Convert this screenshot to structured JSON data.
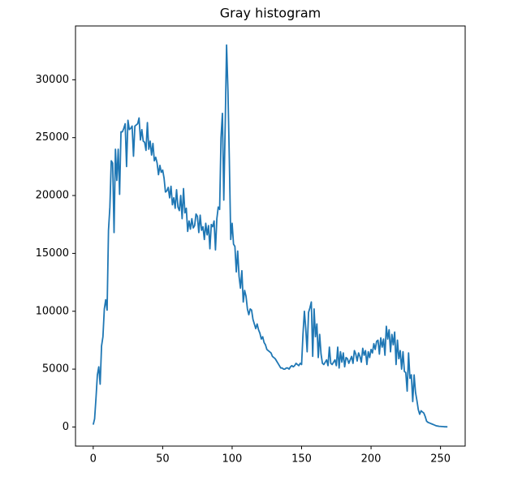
{
  "chart_data": {
    "type": "line",
    "title": "Gray histogram",
    "x": [
      0,
      1,
      2,
      3,
      4,
      5,
      6,
      7,
      8,
      9,
      10,
      11,
      12,
      13,
      14,
      15,
      16,
      17,
      18,
      19,
      20,
      21,
      22,
      23,
      24,
      25,
      26,
      27,
      28,
      29,
      30,
      31,
      32,
      33,
      34,
      35,
      36,
      37,
      38,
      39,
      40,
      41,
      42,
      43,
      44,
      45,
      46,
      47,
      48,
      49,
      50,
      51,
      52,
      53,
      54,
      55,
      56,
      57,
      58,
      59,
      60,
      61,
      62,
      63,
      64,
      65,
      66,
      67,
      68,
      69,
      70,
      71,
      72,
      73,
      74,
      75,
      76,
      77,
      78,
      79,
      80,
      81,
      82,
      83,
      84,
      85,
      86,
      87,
      88,
      89,
      90,
      91,
      92,
      93,
      94,
      95,
      96,
      97,
      98,
      99,
      100,
      101,
      102,
      103,
      104,
      105,
      106,
      107,
      108,
      109,
      110,
      111,
      112,
      113,
      114,
      115,
      116,
      117,
      118,
      119,
      120,
      121,
      122,
      123,
      124,
      125,
      126,
      127,
      128,
      129,
      130,
      131,
      132,
      133,
      134,
      135,
      136,
      137,
      138,
      139,
      140,
      141,
      142,
      143,
      144,
      145,
      146,
      147,
      148,
      149,
      150,
      151,
      152,
      153,
      154,
      155,
      156,
      157,
      158,
      159,
      160,
      161,
      162,
      163,
      164,
      165,
      166,
      167,
      168,
      169,
      170,
      171,
      172,
      173,
      174,
      175,
      176,
      177,
      178,
      179,
      180,
      181,
      182,
      183,
      184,
      185,
      186,
      187,
      188,
      189,
      190,
      191,
      192,
      193,
      194,
      195,
      196,
      197,
      198,
      199,
      200,
      201,
      202,
      203,
      204,
      205,
      206,
      207,
      208,
      209,
      210,
      211,
      212,
      213,
      214,
      215,
      216,
      217,
      218,
      219,
      220,
      221,
      222,
      223,
      224,
      225,
      226,
      227,
      228,
      229,
      230,
      231,
      232,
      233,
      234,
      235,
      236,
      237,
      238,
      239,
      240,
      241,
      242,
      243,
      244,
      245,
      246,
      247,
      248,
      249,
      250,
      251,
      252,
      253,
      254,
      255
    ],
    "series": [
      {
        "color": "#1f77b4",
        "values": [
          200,
          700,
          2500,
          4500,
          5200,
          3700,
          7000,
          7800,
          10200,
          11000,
          10100,
          17000,
          19000,
          23000,
          22800,
          16800,
          24000,
          21300,
          24000,
          20100,
          25500,
          25500,
          25800,
          26200,
          22500,
          26500,
          25700,
          25800,
          26000,
          23400,
          26000,
          26100,
          26200,
          26700,
          24800,
          25700,
          24700,
          24600,
          23900,
          26300,
          24000,
          24700,
          23500,
          24500,
          23000,
          23300,
          22800,
          21800,
          22600,
          22000,
          22200,
          21500,
          20300,
          20400,
          20700,
          19800,
          20800,
          19200,
          19800,
          18900,
          20500,
          19000,
          18700,
          20000,
          18000,
          20600,
          18500,
          18900,
          16900,
          17800,
          17100,
          18000,
          17200,
          17400,
          18400,
          18200,
          16800,
          18300,
          17000,
          17300,
          16200,
          17600,
          16600,
          17400,
          15400,
          17500,
          17300,
          17800,
          15300,
          18000,
          19000,
          18800,
          25000,
          27100,
          19600,
          26000,
          33000,
          29000,
          23000,
          16200,
          17600,
          15800,
          15600,
          13400,
          15200,
          13000,
          12000,
          13500,
          10800,
          11800,
          11300,
          10200,
          9700,
          10200,
          10100,
          9300,
          8900,
          8500,
          8900,
          8400,
          8100,
          7600,
          7800,
          7300,
          7100,
          6700,
          6600,
          6500,
          6400,
          6100,
          6000,
          5900,
          5700,
          5500,
          5300,
          5100,
          5100,
          5000,
          5000,
          5100,
          5100,
          5000,
          5200,
          5300,
          5200,
          5300,
          5500,
          5400,
          5300,
          5500,
          5400,
          8000,
          10000,
          8500,
          6500,
          9900,
          10300,
          10800,
          6100,
          10200,
          7800,
          8900,
          6000,
          8000,
          6300,
          5500,
          5400,
          5600,
          5800,
          5300,
          6900,
          5500,
          5400,
          5600,
          5800,
          5300,
          6900,
          5100,
          6500,
          5600,
          6400,
          5200,
          6000,
          5900,
          5500,
          5800,
          6100,
          5500,
          6600,
          6300,
          5700,
          6400,
          6100,
          5600,
          6800,
          6200,
          6600,
          5400,
          6500,
          6000,
          6700,
          6400,
          7200,
          6700,
          7400,
          7500,
          6300,
          7700,
          6900,
          7600,
          6200,
          8700,
          7600,
          8400,
          6500,
          8000,
          7100,
          8200,
          5400,
          7500,
          5900,
          6600,
          5000,
          6500,
          4800,
          4700,
          3100,
          6400,
          4200,
          4500,
          2200,
          4500,
          3000,
          2300,
          1500,
          1100,
          1400,
          1300,
          1200,
          900,
          500,
          400,
          350,
          300,
          250,
          200,
          150,
          100,
          80,
          60,
          50,
          40,
          30,
          20,
          20,
          10
        ]
      }
    ],
    "xlim": [
      -12.75,
      267.75
    ],
    "xticks": [
      0,
      50,
      100,
      150,
      200,
      250
    ],
    "ylim": [
      -1650,
      34650
    ],
    "yticks": [
      0,
      5000,
      10000,
      15000,
      20000,
      25000,
      30000
    ]
  }
}
